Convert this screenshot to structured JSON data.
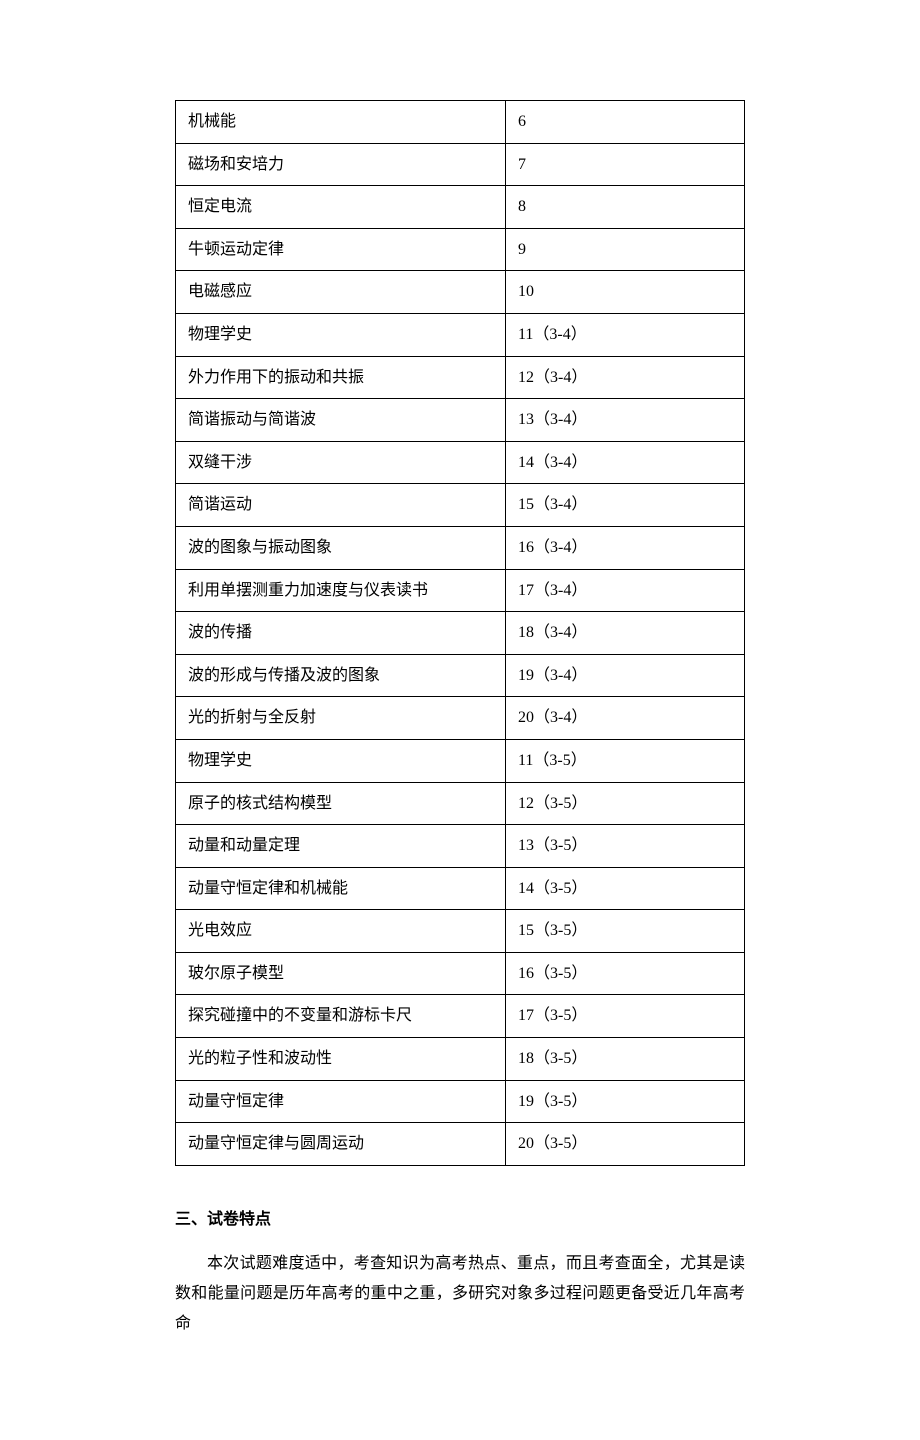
{
  "table": {
    "rows": [
      {
        "topic": "机械能",
        "number": "6"
      },
      {
        "topic": "磁场和安培力",
        "number": "7"
      },
      {
        "topic": "恒定电流",
        "number": "8"
      },
      {
        "topic": "牛顿运动定律",
        "number": "9"
      },
      {
        "topic": "电磁感应",
        "number": "10"
      },
      {
        "topic": "物理学史",
        "number": "11（3-4）"
      },
      {
        "topic": "外力作用下的振动和共振",
        "number": "12（3-4）"
      },
      {
        "topic": "简谐振动与简谐波",
        "number": "13（3-4）"
      },
      {
        "topic": "双缝干涉",
        "number": "14（3-4）"
      },
      {
        "topic": "简谐运动",
        "number": "15（3-4）"
      },
      {
        "topic": "波的图象与振动图象",
        "number": "16（3-4）"
      },
      {
        "topic": "利用单摆测重力加速度与仪表读书",
        "number": "17（3-4）"
      },
      {
        "topic": "波的传播",
        "number": "18（3-4）"
      },
      {
        "topic": "波的形成与传播及波的图象",
        "number": "19（3-4）"
      },
      {
        "topic": "光的折射与全反射",
        "number": "20（3-4）"
      },
      {
        "topic": "物理学史",
        "number": "11（3-5）"
      },
      {
        "topic": "原子的核式结构模型",
        "number": "12（3-5）"
      },
      {
        "topic": "动量和动量定理",
        "number": "13（3-5）"
      },
      {
        "topic": "动量守恒定律和机械能",
        "number": "14（3-5）"
      },
      {
        "topic": "光电效应",
        "number": "15（3-5）"
      },
      {
        "topic": "玻尔原子模型",
        "number": "16（3-5）"
      },
      {
        "topic": "探究碰撞中的不变量和游标卡尺",
        "number": "17（3-5）"
      },
      {
        "topic": "光的粒子性和波动性",
        "number": "18（3-5）"
      },
      {
        "topic": "动量守恒定律",
        "number": "19（3-5）"
      },
      {
        "topic": "动量守恒定律与圆周运动",
        "number": "20（3-5）"
      }
    ]
  },
  "section": {
    "heading": "三、试卷特点",
    "paragraph": "本次试题难度适中，考查知识为高考热点、重点，而且考查面全，尤其是读数和能量问题是历年高考的重中之重，多研究对象多过程问题更备受近几年高考命"
  }
}
